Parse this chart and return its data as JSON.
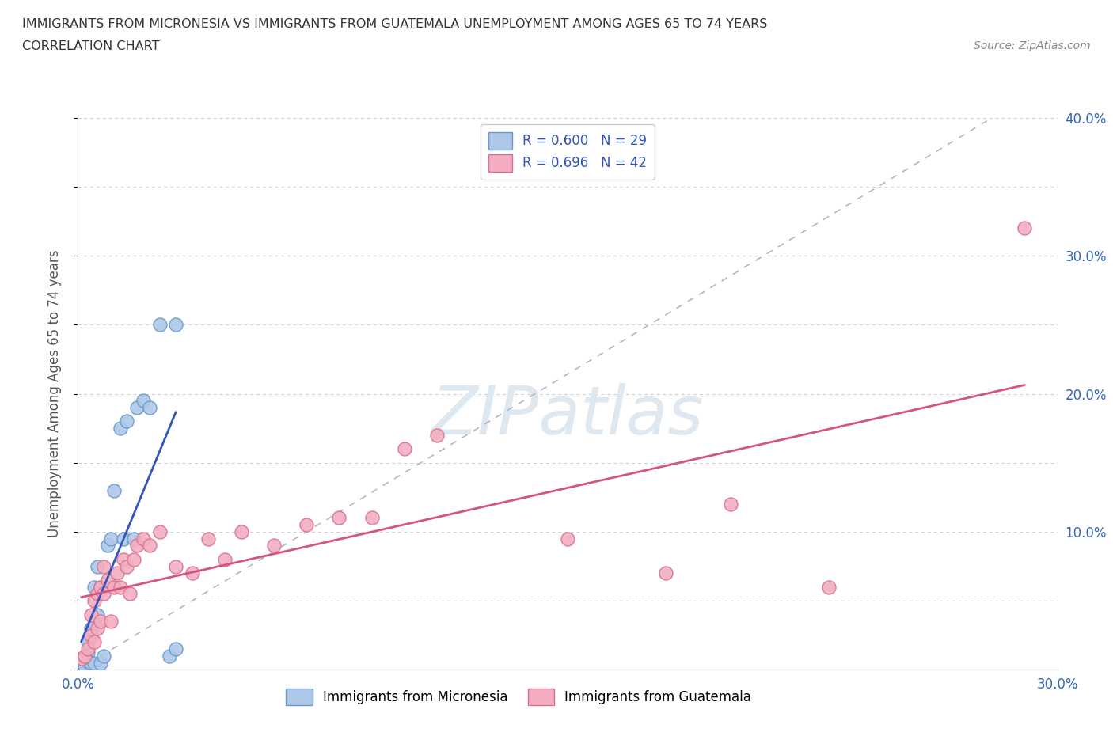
{
  "title_line1": "IMMIGRANTS FROM MICRONESIA VS IMMIGRANTS FROM GUATEMALA UNEMPLOYMENT AMONG AGES 65 TO 74 YEARS",
  "title_line2": "CORRELATION CHART",
  "source": "Source: ZipAtlas.com",
  "ylabel": "Unemployment Among Ages 65 to 74 years",
  "xlim": [
    0.0,
    0.3
  ],
  "ylim": [
    0.0,
    0.4
  ],
  "xticks": [
    0.0,
    0.05,
    0.1,
    0.15,
    0.2,
    0.25,
    0.3
  ],
  "yticks": [
    0.0,
    0.05,
    0.1,
    0.15,
    0.2,
    0.25,
    0.3,
    0.35,
    0.4
  ],
  "xticklabels": [
    "0.0%",
    "",
    "",
    "",
    "",
    "",
    "30.0%"
  ],
  "yticklabels_right": [
    "",
    "",
    "10.0%",
    "",
    "20.0%",
    "",
    "30.0%",
    "",
    "40.0%"
  ],
  "blue_color": "#adc8e8",
  "blue_edge_color": "#6699cc",
  "pink_color": "#f2aec0",
  "pink_edge_color": "#d97090",
  "blue_line_color": "#3355bb",
  "pink_line_color": "#d45580",
  "watermark": "ZIPatlas",
  "watermark_color": "#dde8f0",
  "legend_R_blue": "R = 0.600",
  "legend_N_blue": "N = 29",
  "legend_R_pink": "R = 0.696",
  "legend_N_pink": "N = 42",
  "legend_label_blue": "Immigrants from Micronesia",
  "legend_label_pink": "Immigrants from Guatemala",
  "blue_x": [
    0.001,
    0.002,
    0.002,
    0.003,
    0.003,
    0.003,
    0.004,
    0.004,
    0.005,
    0.005,
    0.006,
    0.006,
    0.007,
    0.007,
    0.008,
    0.009,
    0.01,
    0.011,
    0.013,
    0.014,
    0.015,
    0.017,
    0.018,
    0.02,
    0.022,
    0.025,
    0.028,
    0.03,
    0.03
  ],
  "blue_y": [
    0.005,
    0.008,
    0.003,
    0.012,
    0.006,
    0.02,
    0.03,
    0.005,
    0.06,
    0.005,
    0.04,
    0.075,
    0.06,
    0.005,
    0.01,
    0.09,
    0.095,
    0.13,
    0.175,
    0.095,
    0.18,
    0.095,
    0.19,
    0.195,
    0.19,
    0.25,
    0.01,
    0.25,
    0.015
  ],
  "pink_x": [
    0.001,
    0.002,
    0.003,
    0.004,
    0.004,
    0.005,
    0.005,
    0.006,
    0.006,
    0.007,
    0.007,
    0.008,
    0.008,
    0.009,
    0.01,
    0.011,
    0.012,
    0.013,
    0.014,
    0.015,
    0.016,
    0.017,
    0.018,
    0.02,
    0.022,
    0.025,
    0.03,
    0.035,
    0.04,
    0.045,
    0.05,
    0.06,
    0.07,
    0.08,
    0.09,
    0.1,
    0.11,
    0.15,
    0.18,
    0.2,
    0.23,
    0.29
  ],
  "pink_y": [
    0.008,
    0.01,
    0.015,
    0.025,
    0.04,
    0.02,
    0.05,
    0.03,
    0.055,
    0.035,
    0.06,
    0.055,
    0.075,
    0.065,
    0.035,
    0.06,
    0.07,
    0.06,
    0.08,
    0.075,
    0.055,
    0.08,
    0.09,
    0.095,
    0.09,
    0.1,
    0.075,
    0.07,
    0.095,
    0.08,
    0.1,
    0.09,
    0.105,
    0.11,
    0.11,
    0.16,
    0.17,
    0.095,
    0.07,
    0.12,
    0.06,
    0.32
  ]
}
